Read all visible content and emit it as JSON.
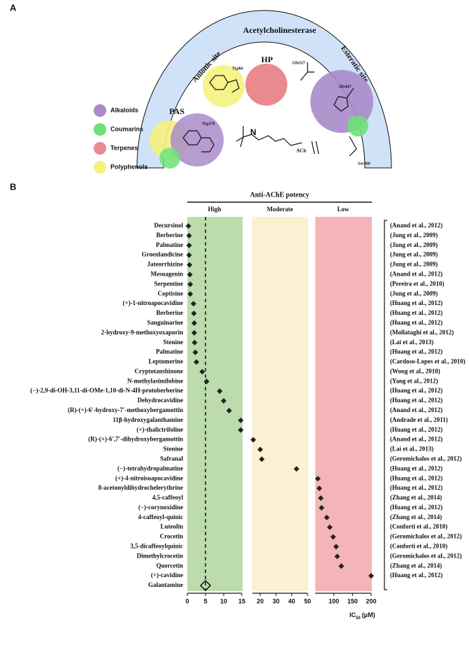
{
  "panel_a": {
    "letter": "A",
    "enzyme": "Acetylcholinesterase",
    "sites": {
      "anionic": "Anionic site",
      "hp": "HP",
      "esteratic": "Esteratic site",
      "pas": "PAS"
    },
    "residues": {
      "trp84": "Trp84",
      "trp279": "Trp279",
      "glu327": "Glu327",
      "his447": "His447",
      "ser200": "Ser200"
    },
    "ligand": "ACh",
    "legend": [
      {
        "name": "Alkaloids",
        "color": "#a98bc9"
      },
      {
        "name": "Coumarins",
        "color": "#6fe07a"
      },
      {
        "name": "Terpenes",
        "color": "#ea8a8f"
      },
      {
        "name": "Polyphenols",
        "color": "#f5f27d"
      }
    ]
  },
  "chart_data": {
    "type": "dot",
    "letter": "B",
    "title": "Anti-AChE potency",
    "x_label_main": "IC",
    "x_label_sub": "50",
    "x_label_unit": "(μM)",
    "segments": [
      {
        "label": "High",
        "color": "#bcdcae",
        "xlim": [
          0,
          15
        ],
        "xticks": [
          0,
          5,
          10,
          15
        ]
      },
      {
        "label": "Moderate",
        "color": "#fbf0d2",
        "xlim": [
          15,
          50
        ],
        "xticks": [
          20,
          30,
          40,
          50
        ]
      },
      {
        "label": "Low",
        "color": "#f3b5b8",
        "xlim": [
          50,
          200
        ],
        "xticks": [
          100,
          150,
          200
        ]
      }
    ],
    "categories": [
      "Decursinol",
      "Berberine",
      "Palmatine",
      "Groenlandicine",
      "Jateorrhizine",
      "Mesuagenin",
      "Serpentine",
      "Coptisine",
      "(+)-1-nitroapocavidine",
      "Berberine",
      "Sanguinarine",
      "2-hydroxy-9-methoxyoxaporin",
      "Stenine",
      "Palmatine",
      "Leptomerine",
      "Cryptotanshinone",
      "N-methylasimilobine",
      "(−)-2,9-di-OH-3,11-di-OMe-1,10-di-N-4H-protoberberine",
      "Dehydrocavidine",
      "(R)-(+)-6′-hydroxy-7′-methoxybergamottin",
      "11β-hydroxygalanthamine",
      "(+)-thalictrifoline",
      "(R)-(+)-6′,7′-dihydroxybergamottin",
      "Stenine",
      "Safranal",
      "(−)-tetrahydropalmatine",
      "(+)-4-nitroisoapocavidine",
      "8-acetonyldihydrochelerythrine",
      "4,5-caffeoyl",
      "(−)-corynoxidine",
      "4-caffeoyl-quinic",
      "Luteolin",
      "Crocetin",
      "3,5-dicaffeoylquinic",
      "Dimethylcrocetin",
      "Quercetin",
      "(+)-cavidine"
    ],
    "values": [
      0.3,
      0.5,
      0.5,
      0.5,
      0.6,
      0.7,
      0.8,
      0.8,
      1.7,
      1.8,
      1.9,
      1.9,
      2.0,
      2.2,
      2.5,
      4.1,
      5.3,
      8.9,
      10,
      11.5,
      14.7,
      14.7,
      15.6,
      20,
      21,
      43,
      57,
      61,
      65,
      67,
      81,
      89,
      98,
      106,
      109,
      120,
      200
    ],
    "citations": [
      "(Anand et al., 2012)",
      "(Jung et al., 2009)",
      "(Jung et al., 2009)",
      "(Jung et al., 2009)",
      "(Jung et al., 2009)",
      "(Anand et al., 2012)",
      "(Pereira et al., 2010)",
      "(Jung et al., 2009)",
      "(Huang et al., 2012)",
      "(Huang et al., 2012)",
      "(Huang et al., 2012)",
      "(Mollataghi et al., 2012)",
      "(Lai et al., 2013)",
      "(Huang et al., 2012)",
      "(Cardoso-Lopes et al., 2010)",
      "(Wong et al., 2010)",
      "(Yang et al., 2012)",
      "(Huang et al., 2012)",
      "(Huang et al., 2012)",
      "(Anand et al., 2012)",
      "(Andrade et al., 2011)",
      "(Huang et al., 2012)",
      "(Anand et al., 2012)",
      "(Lai et al., 2013)",
      "(Geromichalos et al., 2012)",
      "(Huang et al., 2012)",
      "(Huang et al., 2012)",
      "(Huang et al., 2012)",
      "(Zhang et al., 2014)",
      "(Huang et al., 2012)",
      "(Zhang et al., 2014)",
      "(Conforti et al., 2010)",
      "(Geromichalos et al., 2012)",
      "(Conforti et al., 2010)",
      "(Geromichalos et al., 2012)",
      "(Zhang et al., 2014)",
      "(Huang et al., 2012)"
    ],
    "reference": {
      "name": "Galantamine",
      "value": 5
    },
    "marker_color": "#222222"
  }
}
